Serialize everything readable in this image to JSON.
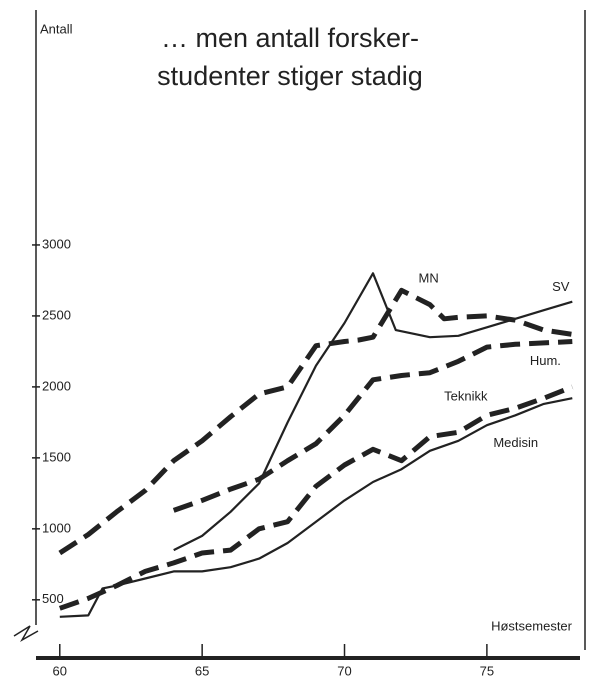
{
  "chart_data": {
    "type": "line",
    "title": [
      "… men antall forsker-",
      "studenter stiger stadig"
    ],
    "y_label": "Antall",
    "x_label": "Høstsemester",
    "xlim": [
      59.2,
      78.2
    ],
    "xticks": [
      60,
      65,
      70,
      75
    ],
    "ylim": [
      90,
      4620
    ],
    "yticks": [
      500,
      1000,
      1500,
      2000,
      2500,
      3000
    ],
    "series": [
      {
        "name": "MN",
        "color": "#222222",
        "style": "dashed",
        "x": [
          60,
          61,
          62,
          63,
          64,
          65,
          66,
          67,
          68,
          69,
          70,
          70.5,
          71,
          72,
          73,
          73.5,
          74,
          75,
          76,
          77,
          78
        ],
        "values": [
          830,
          960,
          1120,
          1270,
          1480,
          1620,
          1790,
          1950,
          2000,
          2290,
          2320,
          2330,
          2350,
          2680,
          2580,
          2480,
          2490,
          2500,
          2470,
          2400,
          2370
        ]
      },
      {
        "name": "SV",
        "color": "#222222",
        "style": "solid",
        "x": [
          64,
          65,
          66,
          67,
          68,
          69,
          70,
          71,
          71.8,
          73,
          74,
          75,
          76,
          77,
          78
        ],
        "values": [
          850,
          950,
          1120,
          1320,
          1750,
          2150,
          2450,
          2800,
          2400,
          2350,
          2360,
          2420,
          2480,
          2540,
          2600
        ]
      },
      {
        "name": "Hum.",
        "color": "#222222",
        "style": "dashed",
        "x": [
          64,
          65,
          66,
          67,
          68,
          69,
          70,
          71,
          72,
          73,
          74,
          75,
          76,
          77,
          78
        ],
        "values": [
          1130,
          1200,
          1280,
          1350,
          1480,
          1600,
          1800,
          2050,
          2080,
          2100,
          2180,
          2280,
          2300,
          2310,
          2320
        ]
      },
      {
        "name": "Teknikk",
        "color": "#222222",
        "style": "dashed",
        "x": [
          60,
          61,
          62,
          63,
          64,
          65,
          66,
          67,
          68,
          69,
          70,
          71,
          72,
          73,
          74,
          75,
          76,
          77,
          78
        ],
        "values": [
          440,
          510,
          600,
          700,
          760,
          830,
          850,
          1000,
          1050,
          1300,
          1450,
          1560,
          1480,
          1650,
          1680,
          1800,
          1850,
          1920,
          2000
        ]
      },
      {
        "name": "Medisin",
        "color": "#222222",
        "style": "solid",
        "x": [
          60,
          61,
          61.5,
          62,
          63,
          64,
          65,
          66,
          67,
          68,
          69,
          70,
          71,
          72,
          73,
          74,
          75,
          76,
          77,
          78
        ],
        "values": [
          380,
          390,
          580,
          600,
          650,
          700,
          700,
          730,
          790,
          900,
          1050,
          1200,
          1330,
          1420,
          1550,
          1620,
          1730,
          1800,
          1880,
          1920
        ]
      }
    ]
  }
}
